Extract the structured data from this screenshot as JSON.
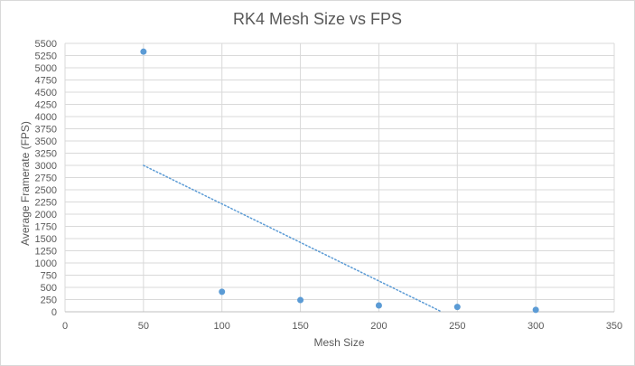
{
  "chart_data": {
    "type": "scatter",
    "title": "RK4 Mesh Size vs FPS",
    "xlabel": "Mesh Size",
    "ylabel": "Average Framerate  (FPS)",
    "xlim": [
      0,
      350
    ],
    "ylim": [
      0,
      5500
    ],
    "x_ticks": [
      0,
      50,
      100,
      150,
      200,
      250,
      300,
      350
    ],
    "y_ticks": [
      0,
      250,
      500,
      750,
      1000,
      1250,
      1500,
      1750,
      2000,
      2250,
      2500,
      2750,
      3000,
      3250,
      3500,
      3750,
      4000,
      4250,
      4500,
      4750,
      5000,
      5250,
      5500
    ],
    "grid": true,
    "legend": "none",
    "series": [
      {
        "x": [
          50,
          100,
          150,
          200,
          250,
          300
        ],
        "y": [
          5330,
          410,
          240,
          130,
          100,
          40
        ],
        "color": "#5b9bd5"
      }
    ],
    "trendline": {
      "type": "linear",
      "x": [
        50,
        240
      ],
      "y": [
        3000,
        0
      ],
      "color": "#5b9bd5",
      "style": "dotted"
    }
  }
}
